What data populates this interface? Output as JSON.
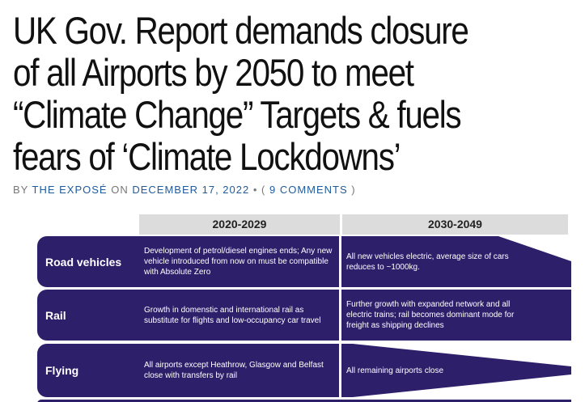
{
  "article": {
    "title": "UK Gov. Report demands closure of all Airports by 2050 to meet “Climate Change” Targets & fuels fears of ‘Climate Lockdowns’",
    "byline_prefix": "BY",
    "author": "THE EXPOSÉ",
    "on": "ON",
    "date": "DECEMBER 17, 2022",
    "sep": "• (",
    "comments": "9 COMMENTS",
    "close": ")"
  },
  "figure": {
    "columns": [
      "2020-2029",
      "2030-2049"
    ],
    "rows": [
      {
        "label": "Road vehicles",
        "c1": "Development of petrol/diesel engines ends; Any new vehicle introduced from now on must be compatible with Absolute Zero",
        "c2": "All new vehicles electric, average size of cars reduces to ~1000kg."
      },
      {
        "label": "Rail",
        "c1": "Growth in domenstic and international rail as substitute for flights and low-occupancy car travel",
        "c2": "Further growth with expanded network and all electric trains; rail becomes dominant mode for freight as shipping declines"
      },
      {
        "label": "Flying",
        "c1": "All airports except Heathrow, Glasgow and Belfast close with transfers by rail",
        "c2": "All remaining airports close"
      }
    ],
    "colors": {
      "band": "#2e1f6b",
      "header": "#dcdcdc",
      "link": "#1f5b9a"
    }
  }
}
